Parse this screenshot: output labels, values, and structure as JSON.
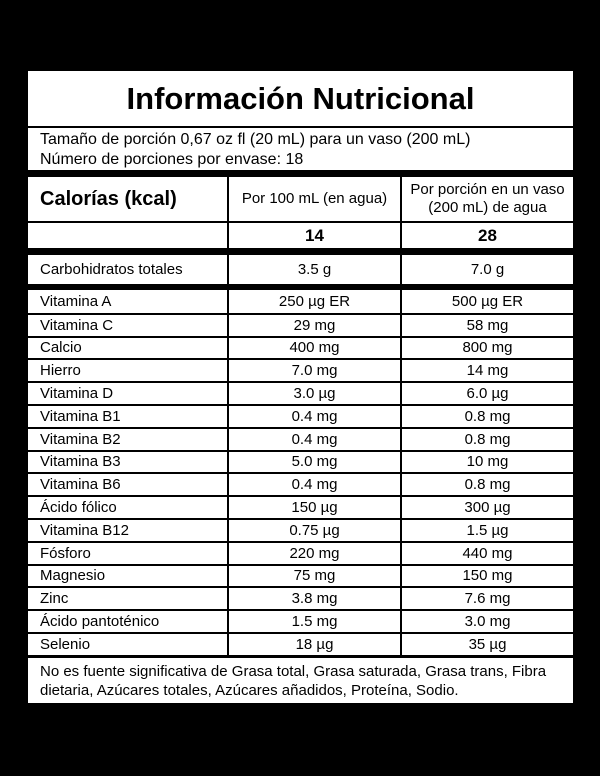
{
  "label": {
    "title": "Información Nutricional",
    "serving": {
      "size_line": "Tamaño de porción 0,67 oz fl (20 mL) para un vaso (200 mL)",
      "count_line": "Número de porciones por envase: 18"
    },
    "columns": {
      "per_100ml_header": "Por 100 mL (en agua)",
      "per_serving_header": "Por porción en un vaso (200 mL) de agua"
    },
    "calories": {
      "name": "Calorías (kcal)",
      "per_100ml": "14",
      "per_serving": "28"
    },
    "carbohydrates": {
      "name": "Carbohidratos totales",
      "per_100ml": "3.5 g",
      "per_serving": "7.0 g"
    },
    "nutrients": [
      {
        "name": "Vitamina A",
        "per_100ml": "250 µg ER",
        "per_serving": "500 µg ER"
      },
      {
        "name": "Vitamina C",
        "per_100ml": "29 mg",
        "per_serving": "58 mg"
      },
      {
        "name": "Calcio",
        "per_100ml": "400 mg",
        "per_serving": "800 mg"
      },
      {
        "name": "Hierro",
        "per_100ml": "7.0 mg",
        "per_serving": "14 mg"
      },
      {
        "name": "Vitamina D",
        "per_100ml": "3.0 µg",
        "per_serving": "6.0 µg"
      },
      {
        "name": "Vitamina B1",
        "per_100ml": "0.4 mg",
        "per_serving": "0.8 mg"
      },
      {
        "name": "Vitamina B2",
        "per_100ml": "0.4 mg",
        "per_serving": "0.8 mg"
      },
      {
        "name": "Vitamina B3",
        "per_100ml": "5.0 mg",
        "per_serving": "10 mg"
      },
      {
        "name": "Vitamina B6",
        "per_100ml": "0.4 mg",
        "per_serving": "0.8 mg"
      },
      {
        "name": "Ácido fólico",
        "per_100ml": "150 µg",
        "per_serving": "300 µg"
      },
      {
        "name": "Vitamina B12",
        "per_100ml": "0.75 µg",
        "per_serving": "1.5 µg"
      },
      {
        "name": "Fósforo",
        "per_100ml": "220 mg",
        "per_serving": "440 mg"
      },
      {
        "name": "Magnesio",
        "per_100ml": "75 mg",
        "per_serving": "150 mg"
      },
      {
        "name": "Zinc",
        "per_100ml": "3.8 mg",
        "per_serving": "7.6 mg"
      },
      {
        "name": "Ácido pantoténico",
        "per_100ml": "1.5 mg",
        "per_serving": "3.0 mg"
      },
      {
        "name": "Selenio",
        "per_100ml": "18 µg",
        "per_serving": "35 µg"
      }
    ],
    "footnote": "No es fuente significativa de Grasa total,  Grasa saturada, Grasa trans, Fibra dietaria, Azúcares totales, Azúcares añadidos, Proteína, Sodio.",
    "colors": {
      "background": "#000000",
      "panel": "#ffffff",
      "text": "#000000"
    }
  }
}
